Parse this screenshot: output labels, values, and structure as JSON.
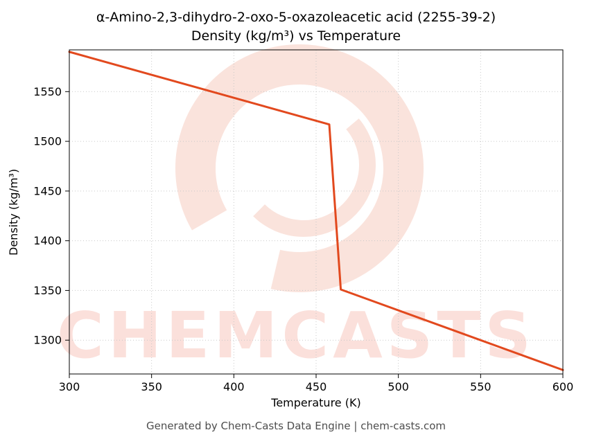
{
  "title_line1": "α-Amino-2,3-dihydro-2-oxo-5-oxazoleacetic acid (2255-39-2)",
  "title_line2": "Density (kg/m³) vs Temperature",
  "footer": "Generated by Chem-Casts Data Engine | chem-casts.com",
  "watermark": "CHEMCASTS",
  "chart_data": {
    "type": "line",
    "title": "α-Amino-2,3-dihydro-2-oxo-5-oxazoleacetic acid (2255-39-2) Density (kg/m³) vs Temperature",
    "xlabel": "Temperature (K)",
    "ylabel": "Density (kg/m³)",
    "xlim": [
      300,
      600
    ],
    "ylim": [
      1266,
      1592
    ],
    "xticks": [
      300,
      350,
      400,
      450,
      500,
      550,
      600
    ],
    "yticks": [
      1300,
      1350,
      1400,
      1450,
      1500,
      1550
    ],
    "grid": true,
    "legend": "none",
    "line_color": "#e2491e",
    "grid_color": "#c8c8c8",
    "watermark_color": "#e8523a",
    "series": [
      {
        "name": "density",
        "points": [
          [
            300,
            1590
          ],
          [
            458,
            1517
          ],
          [
            465,
            1351
          ],
          [
            600,
            1270
          ]
        ]
      }
    ]
  }
}
